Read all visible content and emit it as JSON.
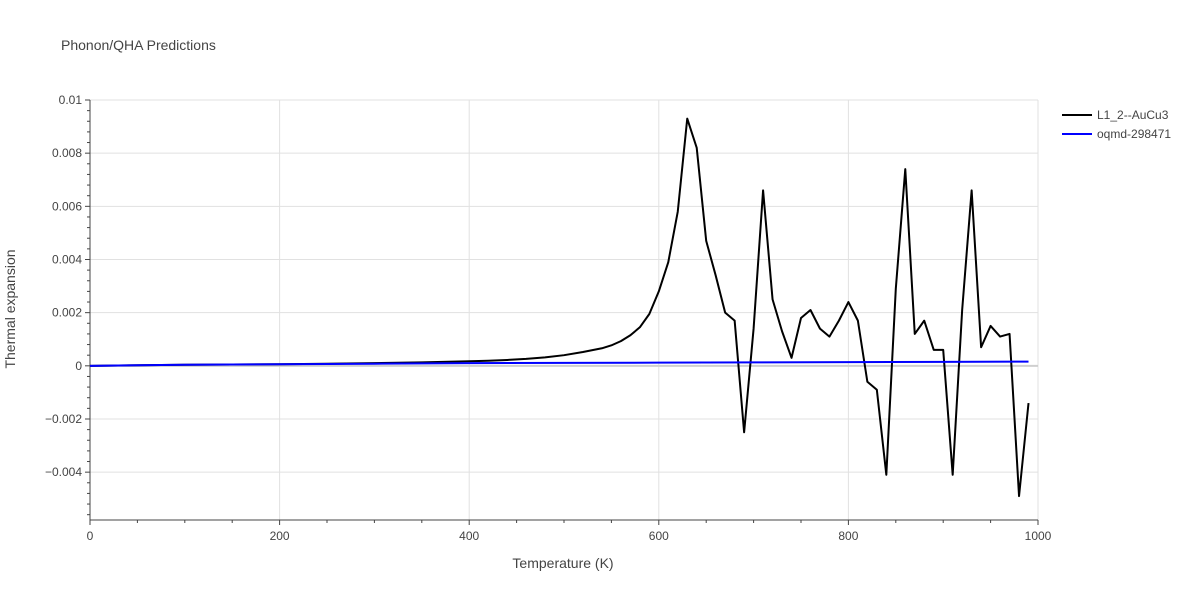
{
  "chart_data": {
    "type": "line",
    "title": "Phonon/QHA Predictions",
    "xlabel": "Temperature (K)",
    "ylabel": "Thermal expansion",
    "xlim": [
      0,
      1000
    ],
    "ylim": [
      -0.0058,
      0.01
    ],
    "x_ticks": [
      0,
      200,
      400,
      600,
      800,
      1000
    ],
    "x_tick_labels": [
      "0",
      "200",
      "400",
      "600",
      "800",
      "1000"
    ],
    "y_ticks": [
      -0.004,
      -0.002,
      0,
      0.002,
      0.004,
      0.006,
      0.008,
      0.01
    ],
    "y_tick_labels": [
      "−0.004",
      "−0.002",
      "0",
      "0.002",
      "0.004",
      "0.006",
      "0.008",
      "0.01"
    ],
    "grid": true,
    "legend_position": "top-right",
    "series": [
      {
        "name": "L1_2--AuCu3",
        "color": "#000000",
        "x": [
          0,
          50,
          100,
          150,
          200,
          250,
          300,
          350,
          400,
          420,
          440,
          460,
          480,
          500,
          520,
          540,
          550,
          560,
          570,
          580,
          590,
          600,
          610,
          620,
          630,
          640,
          650,
          660,
          670,
          680,
          690,
          700,
          710,
          720,
          730,
          740,
          750,
          760,
          770,
          780,
          790,
          800,
          810,
          820,
          830,
          840,
          850,
          860,
          870,
          880,
          890,
          900,
          910,
          920,
          930,
          940,
          950,
          960,
          970,
          980,
          990
        ],
        "y": [
          0,
          2e-05,
          4e-05,
          5e-05,
          6e-05,
          8e-05,
          0.0001,
          0.00013,
          0.00017,
          0.00019,
          0.00022,
          0.00026,
          0.00032,
          0.0004,
          0.00052,
          0.00066,
          0.00077,
          0.00093,
          0.00115,
          0.00145,
          0.00195,
          0.0028,
          0.0039,
          0.0058,
          0.0093,
          0.0082,
          0.0047,
          0.0034,
          0.002,
          0.0017,
          -0.0025,
          0.0014,
          0.0066,
          0.0025,
          0.0013,
          0.0003,
          0.0018,
          0.0021,
          0.0014,
          0.0011,
          0.0017,
          0.0024,
          0.0017,
          -0.0006,
          -0.0009,
          -0.0041,
          0.0029,
          0.0074,
          0.0012,
          0.0017,
          0.0006,
          0.0006,
          -0.0041,
          0.0021,
          0.0066,
          0.0007,
          0.0015,
          0.0011,
          0.0012,
          -0.0049,
          -0.0014
        ]
      },
      {
        "name": "oqmd-298471",
        "color": "#0000ff",
        "x": [
          0,
          100,
          200,
          300,
          400,
          500,
          600,
          700,
          800,
          900,
          990
        ],
        "y": [
          0,
          4e-05,
          6e-05,
          8e-05,
          0.0001,
          0.00011,
          0.00012,
          0.00013,
          0.00014,
          0.00015,
          0.00016
        ]
      }
    ]
  }
}
